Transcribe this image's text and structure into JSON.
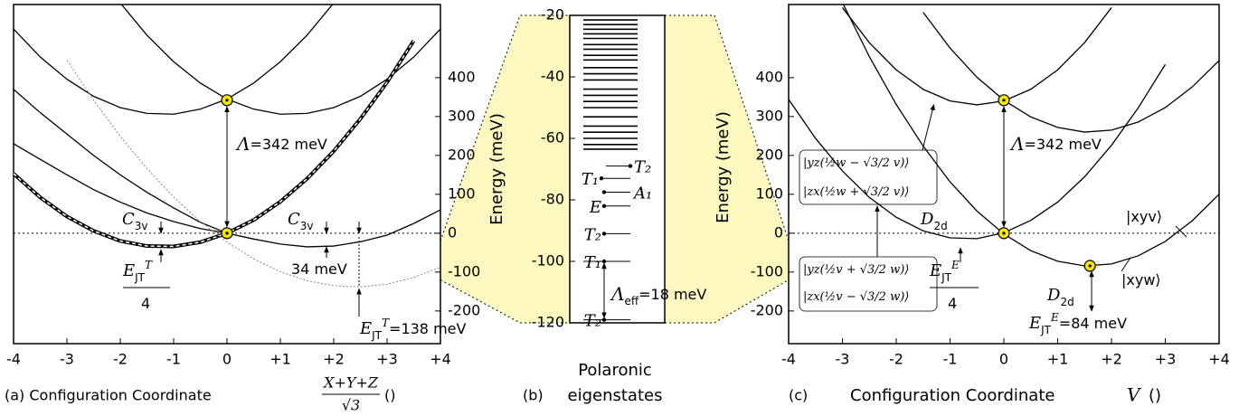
{
  "chart_data": [
    {
      "type": "line",
      "xlabel": "(a) Configuration Coordinate",
      "xlabel_fraction": {
        "numerator": "X+Y+Z",
        "denominator": "√3"
      },
      "xlabel_unit": "()",
      "x": [
        -4,
        -3.5,
        -3,
        -2.5,
        -2,
        -1.5,
        -1,
        -0.5,
        0,
        0.5,
        1,
        1.5,
        2,
        2.5,
        3,
        3.5,
        4
      ],
      "series": [
        {
          "color": "#000000",
          "style": "solid",
          "values": [
            525,
            453,
            396,
            352,
            323,
            308,
            306,
            319,
            345,
            386,
            441,
            509,
            592,
            null,
            null,
            null,
            null
          ]
        },
        {
          "color": "#000000",
          "style": "solid",
          "values": [
            null,
            null,
            null,
            null,
            592,
            509,
            441,
            386,
            345,
            319,
            306,
            308,
            323,
            352,
            396,
            453,
            525
          ]
        },
        {
          "color": "#000000",
          "style": "thick-dashed",
          "values": [
            153,
            92,
            43,
            6,
            -20,
            -33,
            -34,
            -23,
            0,
            34,
            81,
            140,
            211,
            294,
            388,
            495,
            null
          ]
        },
        {
          "color": "#000000",
          "style": "solid",
          "values": [
            230,
            190,
            150,
            112,
            80,
            52,
            30,
            12,
            0,
            -15,
            -28,
            -35,
            -33,
            -22,
            -5,
            25,
            60
          ]
        },
        {
          "color": "#000000",
          "style": "solid",
          "values": [
            370,
            310,
            255,
            200,
            150,
            105,
            65,
            28,
            0,
            null,
            null,
            null,
            null,
            null,
            null,
            null,
            null
          ]
        },
        {
          "color": "#888888",
          "style": "dotted",
          "values": [
            null,
            null,
            445,
            342,
            249,
            166,
            93,
            30,
            -23,
            -66,
            -99,
            -122,
            -135,
            -138,
            -131,
            -114,
            -87
          ]
        }
      ],
      "points": [
        {
          "x": 0,
          "y": 342
        },
        {
          "x": 0,
          "y": 0
        }
      ],
      "point_color": "#f5e400",
      "hlines": [
        0
      ],
      "xlim": [
        -4,
        4
      ],
      "ylim": [
        -284,
        588
      ],
      "xticks": [
        -4,
        -3,
        -2,
        -1,
        0,
        {
          "value": 1,
          "label": "+1"
        },
        {
          "value": 2,
          "label": "+2"
        },
        {
          "value": 3,
          "label": "+3"
        },
        {
          "value": 4,
          "label": "+4"
        }
      ],
      "yticks": [
        -200,
        -100,
        0,
        100,
        200,
        300,
        400
      ],
      "annotations": [
        {
          "parts": [
            {
              "text": "Λ"
            },
            {
              "text": "=342 meV"
            }
          ]
        },
        {
          "parts": [
            {
              "text": "C"
            },
            {
              "text": "3v",
              "sub": true
            }
          ]
        },
        {
          "parts": [
            {
              "text": "C"
            },
            {
              "text": "3v",
              "sub": true
            }
          ]
        },
        {
          "parts": [
            {
              "text": "E"
            },
            {
              "text": "JT",
              "sub": true
            },
            {
              "text": "T",
              "sup": true
            }
          ]
        },
        {
          "parts": [
            {
              "text": "4"
            }
          ]
        },
        {
          "parts": [
            {
              "text": "34 meV"
            }
          ]
        },
        {
          "parts": [
            {
              "text": "E"
            },
            {
              "text": "JT",
              "sub": true
            },
            {
              "text": "T",
              "sup": true
            },
            {
              "text": "=138 meV"
            }
          ]
        }
      ]
    },
    {
      "type": "levels",
      "xlabel": "(b)",
      "xlabel_lines": [
        "Polaronic",
        "eigenstates"
      ],
      "ylabel": "Energy (meV)",
      "ylim": [
        -120,
        -20
      ],
      "yticks": [
        -20,
        -40,
        -60,
        -80,
        -100,
        -120
      ],
      "values": [
        -21.5,
        -23,
        -24.5,
        -26,
        -27.5,
        -29.5,
        -31,
        -33,
        -34.5,
        -37,
        -39,
        -41,
        -44,
        -46,
        -48,
        -50,
        -53,
        -56,
        -58,
        -60,
        -62,
        -63.5,
        -69,
        -73,
        -77.5,
        -82,
        -91,
        -100,
        -119
      ],
      "labels": [
        null,
        null,
        null,
        null,
        null,
        null,
        null,
        null,
        null,
        null,
        null,
        null,
        null,
        null,
        null,
        null,
        null,
        null,
        null,
        null,
        null,
        null,
        "T₂",
        "T₁",
        "A₁",
        "E",
        "T₂",
        "T₁",
        "T₂"
      ],
      "highlight_color": "#fdf7c0",
      "annotations": [
        {
          "parts": [
            {
              "text": "Λ"
            },
            {
              "text": "eff",
              "sub": true
            },
            {
              "text": "=18 meV"
            }
          ]
        }
      ]
    },
    {
      "type": "line",
      "xlabel": "(c)",
      "xlabel_main": "Configuration Coordinate",
      "xlabel_var": "V",
      "xlabel_unit": "()",
      "ylabel": "Energy (meV)",
      "x": [
        -4,
        -3.5,
        -3,
        -2.5,
        -2,
        -1.5,
        -1,
        -0.5,
        0,
        0.5,
        1,
        1.5,
        2,
        2.5,
        3,
        3.5,
        4
      ],
      "series": [
        {
          "color": "#000000",
          "style": "solid",
          "values": [
            null,
            null,
            580,
            490,
            420,
            370,
            340,
            330,
            340,
            370,
            420,
            490,
            580,
            null,
            null,
            null,
            null
          ]
        },
        {
          "color": "#000000",
          "style": "solid",
          "values": [
            null,
            null,
            null,
            null,
            null,
            568,
            476,
            401,
            342,
            299,
            272,
            260,
            265,
            286,
            323,
            376,
            444
          ]
        },
        {
          "color": "#000000",
          "style": "solid",
          "values": [
            344,
            244,
            160,
            92,
            41,
            6,
            -12,
            -14,
            1,
            33,
            80,
            145,
            226,
            323,
            434,
            null,
            null
          ]
        },
        {
          "color": "#000000",
          "style": "solid",
          "values": [
            null,
            null,
            593,
            454,
            331,
            224,
            132,
            57,
            -2,
            -45,
            -72,
            -84,
            -79,
            -58,
            -21,
            32,
            100
          ]
        }
      ],
      "points": [
        {
          "x": 0,
          "y": 342
        },
        {
          "x": 0,
          "y": 0
        },
        {
          "x": 1.6,
          "y": -84
        }
      ],
      "point_color": "#f5e400",
      "hlines": [
        0
      ],
      "xlim": [
        -4,
        4
      ],
      "ylim": [
        -284,
        588
      ],
      "xticks": [
        -4,
        -3,
        -2,
        -1,
        0,
        {
          "value": 1,
          "label": "+1"
        },
        {
          "value": 2,
          "label": "+2"
        },
        {
          "value": 3,
          "label": "+3"
        },
        {
          "value": 4,
          "label": "+4"
        }
      ],
      "yticks": [
        -200,
        -100,
        0,
        100,
        200,
        300,
        400
      ],
      "annotations": [
        {
          "parts": [
            {
              "text": "Λ"
            },
            {
              "text": "=342 meV"
            }
          ]
        },
        {
          "parts": [
            {
              "text": "D"
            },
            {
              "text": "2d",
              "sub": true
            }
          ]
        },
        {
          "parts": [
            {
              "text": "D"
            },
            {
              "text": "2d",
              "sub": true
            }
          ]
        },
        {
          "parts": [
            {
              "text": "E"
            },
            {
              "text": "JT",
              "sub": true
            },
            {
              "text": "E",
              "sup": true
            }
          ]
        },
        {
          "parts": [
            {
              "text": "4"
            }
          ]
        },
        {
          "parts": [
            {
              "text": "E"
            },
            {
              "text": "JT",
              "sub": true
            },
            {
              "text": "E",
              "sup": true
            },
            {
              "text": "=84 meV"
            }
          ]
        },
        {
          "parts": [
            {
              "text": "|xyw⟩"
            }
          ]
        },
        {
          "parts": [
            {
              "text": "|xyv⟩"
            }
          ]
        },
        {
          "parts": [
            {
              "text": "|yz(½w − √3/2 v)⟩"
            }
          ]
        },
        {
          "parts": [
            {
              "text": "|zx(½w + √3/2 v)⟩"
            }
          ]
        },
        {
          "parts": [
            {
              "text": "|yz(½v + √3/2 w)⟩"
            }
          ]
        },
        {
          "parts": [
            {
              "text": "|zx(½v − √3/2 w)⟩"
            }
          ]
        }
      ]
    }
  ]
}
